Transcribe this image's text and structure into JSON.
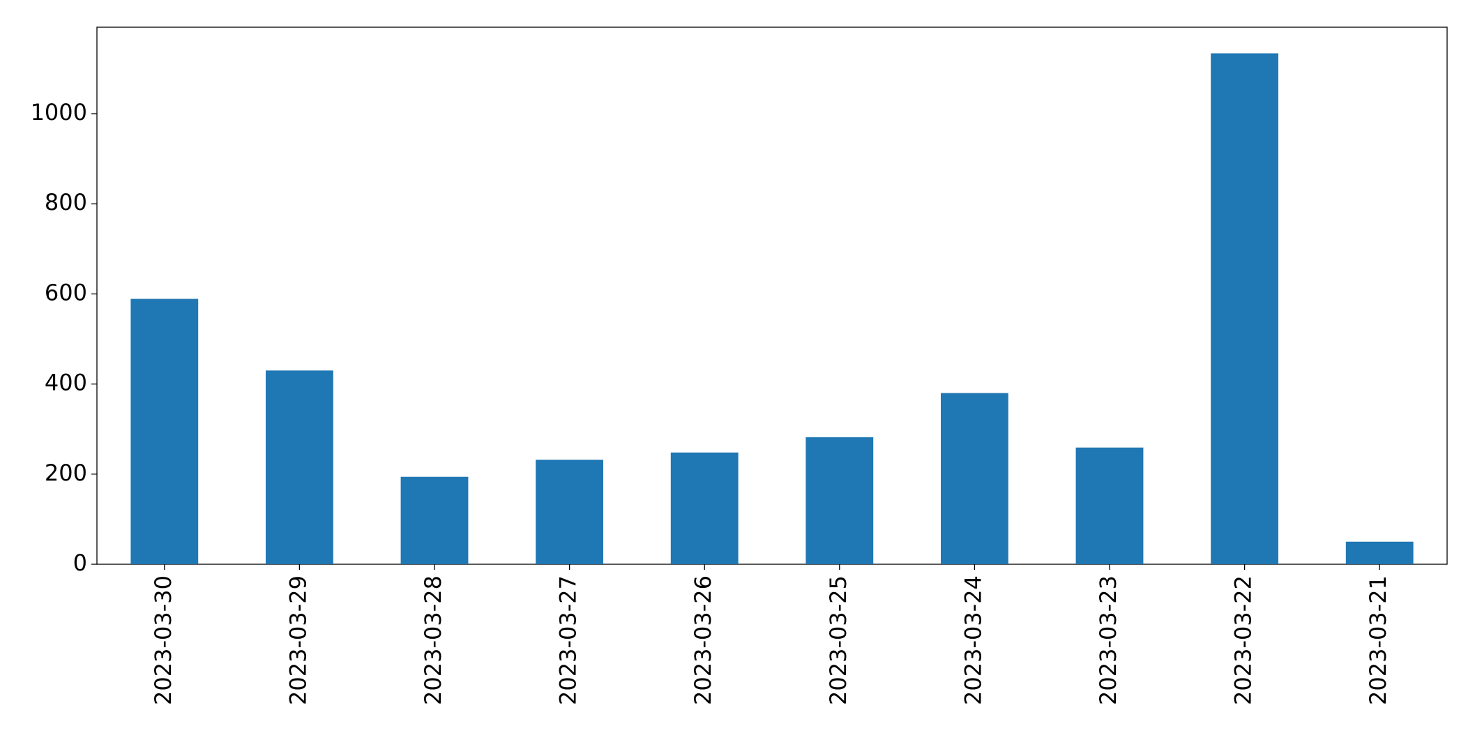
{
  "chart_data": {
    "type": "bar",
    "categories": [
      "2023-03-30",
      "2023-03-29",
      "2023-03-28",
      "2023-03-27",
      "2023-03-26",
      "2023-03-25",
      "2023-03-24",
      "2023-03-23",
      "2023-03-22",
      "2023-03-21"
    ],
    "values": [
      589,
      430,
      194,
      232,
      248,
      282,
      380,
      259,
      1134,
      50
    ],
    "color": "#1f77b4",
    "ylim": [
      0,
      1192
    ],
    "yticks": [
      0,
      200,
      400,
      600,
      800,
      1000
    ],
    "grid": false
  }
}
